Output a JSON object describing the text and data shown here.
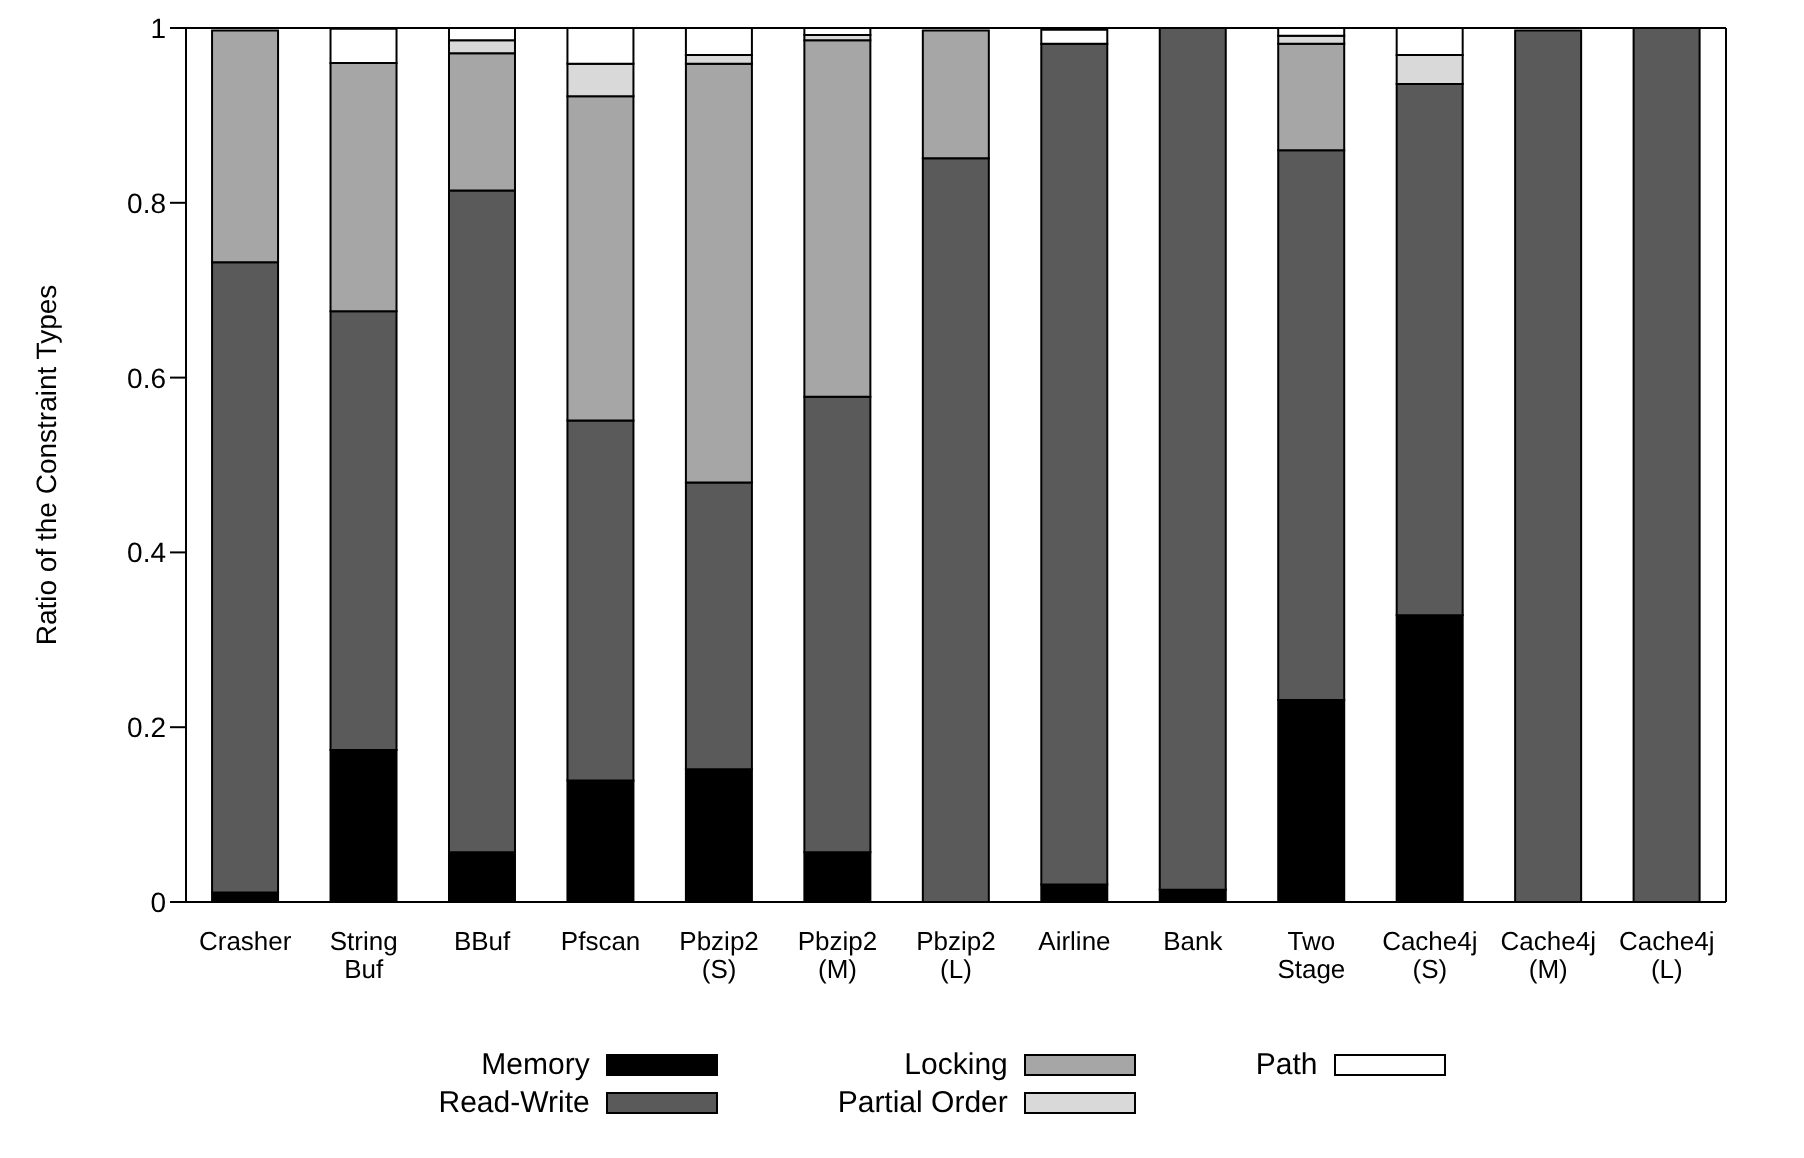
{
  "chart_data": {
    "type": "bar",
    "stacked": true,
    "ylabel": "Ratio of the Constraint Types",
    "categories": [
      "Crasher",
      "String Buf",
      "BBuf",
      "Pfscan",
      "Pbzip2 (S)",
      "Pbzip2 (M)",
      "Pbzip2 (L)",
      "Airline",
      "Bank",
      "Two Stage",
      "Cache4j (S)",
      "Cache4j (M)",
      "Cache4j (L)"
    ],
    "series": [
      {
        "name": "Memory",
        "color": "#000000",
        "values": [
          0.011,
          0.174,
          0.057,
          0.139,
          0.152,
          0.057,
          null,
          0.02,
          0.014,
          0.231,
          0.328,
          null,
          0
        ]
      },
      {
        "name": "Read-Write",
        "color": "#5a5a5a",
        "values": [
          0.721,
          0.502,
          0.757,
          0.412,
          0.328,
          0.521,
          0.851,
          0.962,
          0.986,
          0.629,
          0.608,
          0.997,
          1
        ]
      },
      {
        "name": "Locking",
        "color": "#a6a6a6",
        "values": [
          0.265,
          0.284,
          0.157,
          0.371,
          0.479,
          0.408,
          0.146,
          null,
          0,
          0.122,
          0,
          0,
          0
        ]
      },
      {
        "name": "Partial Order",
        "color": "#d9d9d9",
        "values": [
          0,
          null,
          0.015,
          0.037,
          0.01,
          0.006,
          0,
          0,
          0,
          0.009,
          0.033,
          0,
          0
        ]
      },
      {
        "name": "Path",
        "color": "#ffffff",
        "values": [
          null,
          0.039,
          0.014,
          0.041,
          0.031,
          0.008,
          0,
          0.016,
          0,
          0.009,
          0.031,
          0,
          0
        ]
      }
    ],
    "ylim": [
      0,
      1
    ],
    "yticks": [
      0,
      0.2,
      0.4,
      0.6,
      0.8,
      1
    ],
    "grid": false,
    "legend": "bottom"
  }
}
